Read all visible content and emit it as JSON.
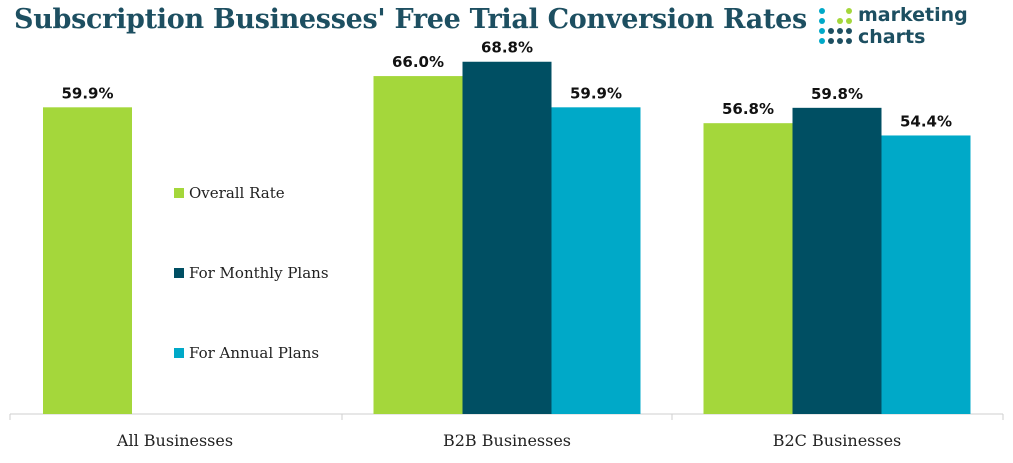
{
  "title": "Subscription Businesses' Free Trial Conversion Rates",
  "logo": {
    "line1": "marketing",
    "line2": "charts"
  },
  "colors": {
    "overall": "#a4d73b",
    "monthly": "#004f63",
    "annual": "#00a9c8"
  },
  "chart_data": {
    "type": "bar",
    "categories": [
      "All Businesses",
      "B2B Businesses",
      "B2C Businesses"
    ],
    "series": [
      {
        "name": "Overall Rate",
        "values": [
          59.9,
          66.0,
          56.8
        ],
        "labels": [
          "59.9%",
          "66.0%",
          "56.8%"
        ]
      },
      {
        "name": "For Monthly Plans",
        "values": [
          null,
          68.8,
          59.8
        ],
        "labels": [
          "",
          "68.8%",
          "59.8%"
        ]
      },
      {
        "name": "For Annual Plans",
        "values": [
          null,
          59.9,
          54.4
        ],
        "labels": [
          "",
          "59.9%",
          "54.4%"
        ]
      }
    ],
    "ylim": [
      0,
      100
    ],
    "grid": false,
    "legend": "inside-left"
  }
}
